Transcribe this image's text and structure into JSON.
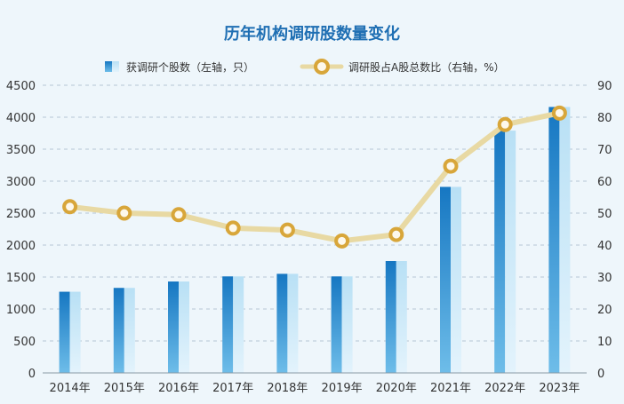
{
  "chart_data": {
    "type": "bar",
    "title": "历年机构调研股数量变化",
    "categories": [
      "2014年",
      "2015年",
      "2016年",
      "2017年",
      "2018年",
      "2019年",
      "2020年",
      "2021年",
      "2022年",
      "2023年"
    ],
    "series": [
      {
        "name": "获调研个股数（左轴，只）",
        "type": "bar",
        "axis": "left",
        "values": [
          1270,
          1330,
          1430,
          1510,
          1550,
          1510,
          1750,
          2910,
          3790,
          4160
        ]
      },
      {
        "name": "调研股占A股总数比（右轴，%）",
        "type": "line",
        "axis": "right",
        "values": [
          52,
          50,
          49.5,
          45.3,
          44.7,
          41.3,
          43.3,
          64.7,
          77.7,
          81.3
        ]
      }
    ],
    "y_left": {
      "min": 0,
      "max": 4500,
      "ticks": [
        "0",
        "500",
        "1000",
        "1500",
        "2000",
        "2500",
        "3000",
        "3500",
        "4000",
        "4500"
      ]
    },
    "y_right": {
      "min": 0,
      "max": 90,
      "ticks": [
        "0",
        "10",
        "20",
        "30",
        "40",
        "50",
        "60",
        "70",
        "80",
        "90"
      ]
    },
    "grid": true,
    "legend": "top-center",
    "colors": {
      "bar_dark": "#1a86c8",
      "bar_light": "#a9d8f2",
      "line": "#e8d9a3",
      "marker": "#d8a63a",
      "title": "#1f6fb3"
    }
  }
}
